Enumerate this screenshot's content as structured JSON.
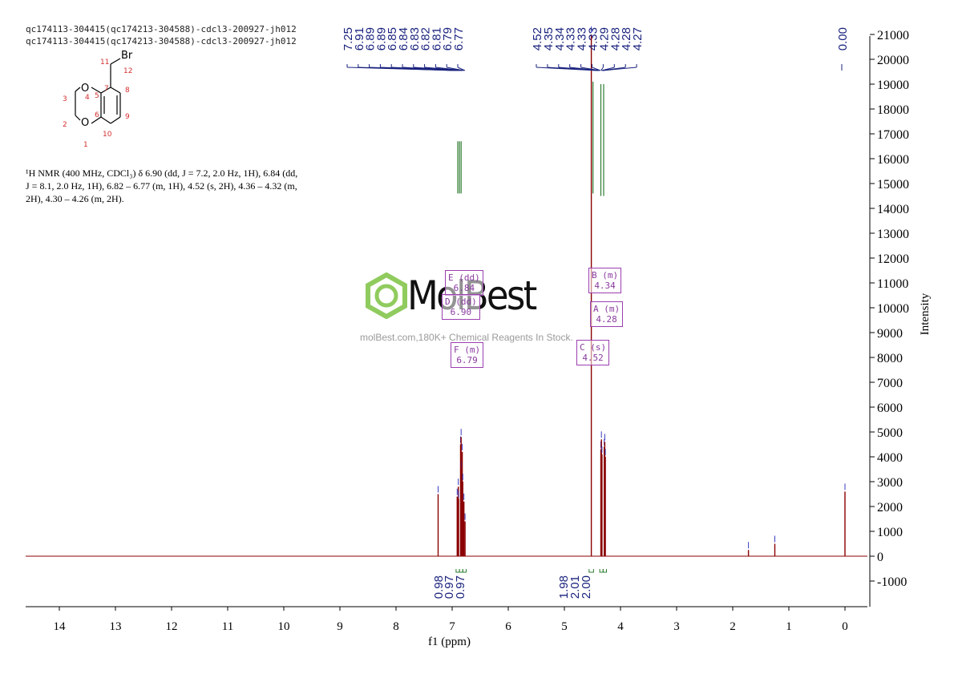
{
  "header": {
    "line1": "qc174113-304415(qc174213-304588)-cdcl3-200927-jh012",
    "line2": "qc174113-304415(qc174213-304588)-cdcl3-200927-jh012"
  },
  "structure": {
    "atom_labels": [
      "O",
      "O",
      "Br"
    ],
    "numbers": [
      "1",
      "2",
      "3",
      "4",
      "5",
      "6",
      "7",
      "8",
      "9",
      "10",
      "11",
      "12"
    ]
  },
  "nmr_text": "¹H NMR (400 MHz, CDCl₃) δ 6.90 (dd, J = 7.2, 2.0 Hz, 1H), 6.84 (dd, J = 8.1, 2.0 Hz, 1H), 6.82 – 6.77 (m, 1H), 4.52 (s, 2H), 4.36 – 4.32 (m, 2H), 4.30 – 4.26 (m, 2H).",
  "watermark": {
    "brand": "MolBest",
    "tagline": "molBest.com,180K+ Chemical Reagents In Stock."
  },
  "peak_boxes": [
    {
      "label": "E (dd)",
      "value": "6.84"
    },
    {
      "label": "D (dd)",
      "value": "6.90"
    },
    {
      "label": "F (m)",
      "value": "6.79"
    },
    {
      "label": "B (m)",
      "value": "4.34"
    },
    {
      "label": "A (m)",
      "value": "4.28"
    },
    {
      "label": "C (s)",
      "value": "4.52"
    }
  ],
  "colors": {
    "spectrum": "#8b0000",
    "peak_labels": "#1a237e",
    "integrals": "#2e7d32",
    "boxes": "#9b3fb0",
    "logo_green": "#7dc242"
  },
  "chart_data": {
    "type": "line",
    "xlabel": "f1 (ppm)",
    "ylabel": "Intensity",
    "xlim": [
      14.6,
      -0.4
    ],
    "ylim": [
      -2000,
      21500
    ],
    "x_ticks": [
      14,
      13,
      12,
      11,
      10,
      9,
      8,
      7,
      6,
      5,
      4,
      3,
      2,
      1,
      0
    ],
    "y_ticks": [
      -1000,
      0,
      1000,
      2000,
      3000,
      4000,
      5000,
      6000,
      7000,
      8000,
      9000,
      10000,
      11000,
      12000,
      13000,
      14000,
      15000,
      16000,
      17000,
      18000,
      19000,
      20000,
      21000
    ],
    "peaks": [
      {
        "ppm": 7.25,
        "intensity": 2500
      },
      {
        "ppm": 6.91,
        "intensity": 2400
      },
      {
        "ppm": 6.89,
        "intensity": 2800
      },
      {
        "ppm": 6.885,
        "intensity": 2300
      },
      {
        "ppm": 6.85,
        "intensity": 4500
      },
      {
        "ppm": 6.84,
        "intensity": 4800
      },
      {
        "ppm": 6.83,
        "intensity": 3500
      },
      {
        "ppm": 6.82,
        "intensity": 4200
      },
      {
        "ppm": 6.81,
        "intensity": 3000
      },
      {
        "ppm": 6.79,
        "intensity": 2200
      },
      {
        "ppm": 6.77,
        "intensity": 1400
      },
      {
        "ppm": 4.52,
        "intensity": 21000
      },
      {
        "ppm": 4.35,
        "intensity": 4300
      },
      {
        "ppm": 4.34,
        "intensity": 4700
      },
      {
        "ppm": 4.33,
        "intensity": 4100
      },
      {
        "ppm": 4.29,
        "intensity": 4400
      },
      {
        "ppm": 4.28,
        "intensity": 4600
      },
      {
        "ppm": 4.27,
        "intensity": 4000
      },
      {
        "ppm": 1.72,
        "intensity": 250
      },
      {
        "ppm": 1.25,
        "intensity": 500
      },
      {
        "ppm": 0.0,
        "intensity": 2600
      }
    ],
    "peak_labels_left": [
      "7.25",
      "6.91",
      "6.89",
      "6.89",
      "6.85",
      "6.84",
      "6.83",
      "6.82",
      "6.81",
      "6.79",
      "6.77"
    ],
    "peak_labels_mid": [
      "4.52",
      "4.35",
      "4.34",
      "4.33",
      "4.33",
      "4.33",
      "4.29",
      "4.28",
      "4.28",
      "4.27"
    ],
    "peak_labels_right": [
      "0.00"
    ],
    "integrals": [
      {
        "from": 6.93,
        "to": 6.87,
        "value": "0.98"
      },
      {
        "from": 6.87,
        "to": 6.81,
        "value": "0.97"
      },
      {
        "from": 6.81,
        "to": 6.75,
        "value": "0.97"
      },
      {
        "from": 4.56,
        "to": 4.48,
        "value": "1.98"
      },
      {
        "from": 4.37,
        "to": 4.31,
        "value": "2.01"
      },
      {
        "from": 4.31,
        "to": 4.25,
        "value": "2.00"
      }
    ]
  }
}
